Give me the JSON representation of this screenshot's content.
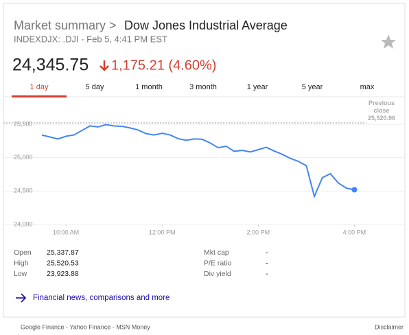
{
  "header": {
    "breadcrumb": "Market summary >",
    "title": "Dow Jones Industrial Average",
    "subtitle": "INDEXDJX: .DJI - Feb 5, 4:41 PM EST"
  },
  "quote": {
    "price": "24,345.75",
    "change": "1,175.21 (4.60%)"
  },
  "tabs": [
    "1 day",
    "5 day",
    "1 month",
    "3 month",
    "1 year",
    "5 year",
    "max"
  ],
  "active_tab": 0,
  "chart_data": {
    "type": "line",
    "color": "#4285f4",
    "x": [
      570,
      580,
      590,
      600,
      610,
      620,
      630,
      640,
      650,
      660,
      670,
      680,
      690,
      700,
      710,
      720,
      730,
      740,
      750,
      760,
      770,
      780,
      790,
      800,
      810,
      820,
      830,
      840,
      850,
      860,
      870,
      880,
      890,
      900,
      910,
      920,
      930,
      940,
      950,
      960
    ],
    "series": [
      {
        "values": [
          25338,
          25310,
          25280,
          25320,
          25340,
          25407,
          25475,
          25460,
          25495,
          25475,
          25469,
          25445,
          25415,
          25360,
          25340,
          25365,
          25340,
          25285,
          25260,
          25280,
          25275,
          25220,
          25150,
          25171,
          25095,
          25110,
          25085,
          25120,
          25155,
          25099,
          25050,
          24990,
          24945,
          24880,
          24420,
          24700,
          24760,
          24620,
          24544,
          24520
        ]
      }
    ],
    "xlim": [
      522,
      1023
    ],
    "xticks": [
      {
        "value": 600,
        "label": "10:00 AM"
      },
      {
        "value": 720,
        "label": "12:00 PM"
      },
      {
        "value": 840,
        "label": "2:00 PM"
      },
      {
        "value": 960,
        "label": "4:00 PM"
      }
    ],
    "ylim": [
      24000,
      25870
    ],
    "yticks": [
      {
        "value": 24000,
        "label": "24,000"
      },
      {
        "value": 24500,
        "label": "24,500"
      },
      {
        "value": 25000,
        "label": "25,000"
      },
      {
        "value": 25500,
        "label": "25,500"
      }
    ],
    "grid": true,
    "reference_line": {
      "name": "Previous close",
      "value": 25520.96,
      "label": "25,520.96"
    }
  },
  "stats": [
    [
      {
        "label": "Open",
        "value": "25,337.87"
      },
      {
        "label": "High",
        "value": "25,520.53"
      },
      {
        "label": "Low",
        "value": "23,923.88"
      }
    ],
    [
      {
        "label": "Mkt cap",
        "value": "-"
      },
      {
        "label": "P/E ratio",
        "value": "-"
      },
      {
        "label": "Div yield",
        "value": "-"
      }
    ]
  ],
  "link": "Financial news, comparisons and more",
  "footer": {
    "sources": "Google Finance - Yahoo Finance - MSN Money",
    "disclaimer": "Disclaimer"
  }
}
